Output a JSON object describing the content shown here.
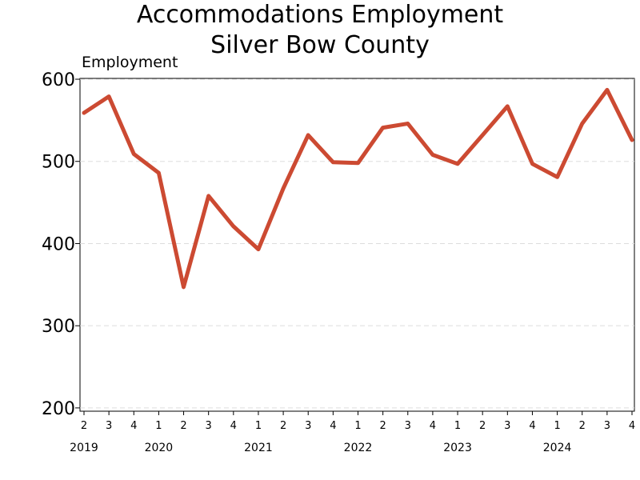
{
  "chart_data": {
    "type": "line",
    "title": "Accommodations Employment",
    "subtitle": "Silver Bow County",
    "ylabel": "Employment",
    "xlabel": "",
    "ylim": [
      196,
      601
    ],
    "yticks": [
      200,
      300,
      400,
      500,
      600
    ],
    "grid": "horizontal dashed",
    "colors": {
      "line": "#cc4a32",
      "grid": "#dddddd"
    },
    "quarters": [
      "2",
      "3",
      "4",
      "1",
      "2",
      "3",
      "4",
      "1",
      "2",
      "3",
      "4",
      "1",
      "2",
      "3",
      "4",
      "1",
      "2",
      "3",
      "4",
      "1",
      "2",
      "3",
      "4"
    ],
    "years": [
      {
        "label": "2019",
        "index": 0
      },
      {
        "label": "2020",
        "index": 3
      },
      {
        "label": "2021",
        "index": 7
      },
      {
        "label": "2022",
        "index": 11
      },
      {
        "label": "2023",
        "index": 15
      },
      {
        "label": "2024",
        "index": 19
      }
    ],
    "series": [
      {
        "values": [
          559,
          579,
          509,
          486,
          347,
          458,
          421,
          393,
          467,
          532,
          499,
          498,
          541,
          546,
          508,
          497,
          532,
          567,
          497,
          481,
          546,
          587,
          526
        ]
      }
    ]
  }
}
